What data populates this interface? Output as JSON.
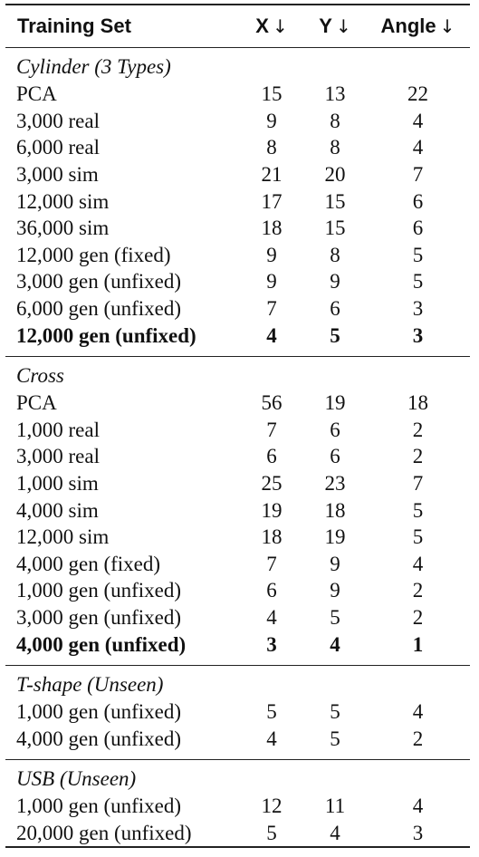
{
  "header": {
    "training_set": "Training Set",
    "x": "X",
    "y": "Y",
    "angle": "Angle",
    "arrow": "↓"
  },
  "sections": [
    {
      "title": "Cylinder (3 Types)",
      "rows": [
        {
          "set": "PCA",
          "x": "15",
          "y": "13",
          "angle": "22",
          "bold": false
        },
        {
          "set": "3,000 real",
          "x": "9",
          "y": "8",
          "angle": "4",
          "bold": false
        },
        {
          "set": "6,000 real",
          "x": "8",
          "y": "8",
          "angle": "4",
          "bold": false
        },
        {
          "set": "3,000 sim",
          "x": "21",
          "y": "20",
          "angle": "7",
          "bold": false
        },
        {
          "set": "12,000 sim",
          "x": "17",
          "y": "15",
          "angle": "6",
          "bold": false
        },
        {
          "set": "36,000 sim",
          "x": "18",
          "y": "15",
          "angle": "6",
          "bold": false
        },
        {
          "set": "12,000 gen (fixed)",
          "x": "9",
          "y": "8",
          "angle": "5",
          "bold": false
        },
        {
          "set": "3,000 gen (unfixed)",
          "x": "9",
          "y": "9",
          "angle": "5",
          "bold": false
        },
        {
          "set": "6,000 gen (unfixed)",
          "x": "7",
          "y": "6",
          "angle": "3",
          "bold": false
        },
        {
          "set": "12,000 gen (unfixed)",
          "x": "4",
          "y": "5",
          "angle": "3",
          "bold": true
        }
      ]
    },
    {
      "title": "Cross",
      "rows": [
        {
          "set": "PCA",
          "x": "56",
          "y": "19",
          "angle": "18",
          "bold": false
        },
        {
          "set": "1,000 real",
          "x": "7",
          "y": "6",
          "angle": "2",
          "bold": false
        },
        {
          "set": "3,000 real",
          "x": "6",
          "y": "6",
          "angle": "2",
          "bold": false
        },
        {
          "set": "1,000 sim",
          "x": "25",
          "y": "23",
          "angle": "7",
          "bold": false
        },
        {
          "set": "4,000 sim",
          "x": "19",
          "y": "18",
          "angle": "5",
          "bold": false
        },
        {
          "set": "12,000 sim",
          "x": "18",
          "y": "19",
          "angle": "5",
          "bold": false
        },
        {
          "set": "4,000 gen (fixed)",
          "x": "7",
          "y": "9",
          "angle": "4",
          "bold": false
        },
        {
          "set": "1,000 gen (unfixed)",
          "x": "6",
          "y": "9",
          "angle": "2",
          "bold": false
        },
        {
          "set": "3,000 gen (unfixed)",
          "x": "4",
          "y": "5",
          "angle": "2",
          "bold": false
        },
        {
          "set": "4,000 gen (unfixed)",
          "x": "3",
          "y": "4",
          "angle": "1",
          "bold": true
        }
      ]
    },
    {
      "title": "T-shape (Unseen)",
      "rows": [
        {
          "set": "1,000 gen (unfixed)",
          "x": "5",
          "y": "5",
          "angle": "4",
          "bold": false
        },
        {
          "set": "4,000 gen (unfixed)",
          "x": "4",
          "y": "5",
          "angle": "2",
          "bold": false
        }
      ]
    },
    {
      "title": "USB (Unseen)",
      "rows": [
        {
          "set": "1,000 gen (unfixed)",
          "x": "12",
          "y": "11",
          "angle": "4",
          "bold": false
        },
        {
          "set": "20,000 gen (unfixed)",
          "x": "5",
          "y": "4",
          "angle": "3",
          "bold": false
        }
      ]
    }
  ]
}
